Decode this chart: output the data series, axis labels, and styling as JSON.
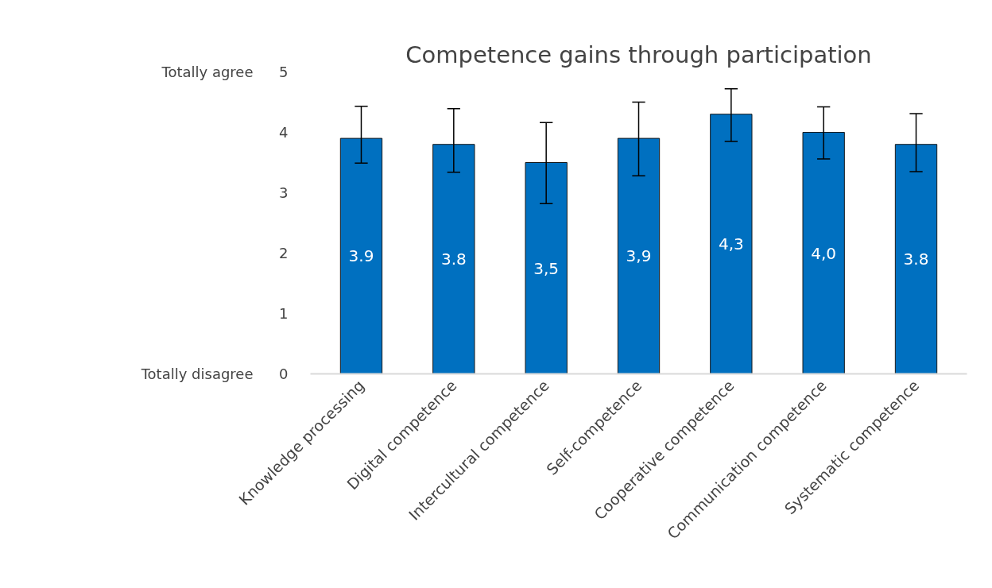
{
  "chart_data": {
    "type": "bar",
    "title": "Competence gains through participation",
    "categories": [
      "Knowledge processing",
      "Digital competence",
      "Intercultural competence",
      "Self-competence",
      "Cooperative competence",
      "Communication competence",
      "Systematic competence"
    ],
    "values": [
      3.9,
      3.8,
      3.5,
      3.9,
      4.3,
      4.0,
      3.8
    ],
    "value_labels": [
      "3.9",
      "3.8",
      "3,5",
      "3,9",
      "4,3",
      "4,0",
      "3.8"
    ],
    "errors": [
      [
        3.49,
        4.43
      ],
      [
        3.34,
        4.39
      ],
      [
        2.82,
        4.16
      ],
      [
        3.28,
        4.5
      ],
      [
        3.85,
        4.72
      ],
      [
        3.56,
        4.42
      ],
      [
        3.35,
        4.31
      ]
    ],
    "color": "#0070c0",
    "ylim": [
      0,
      5
    ],
    "yticks": [
      0,
      1,
      2,
      3,
      4,
      5
    ],
    "grid": false,
    "annotations": [
      "Totally agree",
      "Totally disagree"
    ]
  }
}
